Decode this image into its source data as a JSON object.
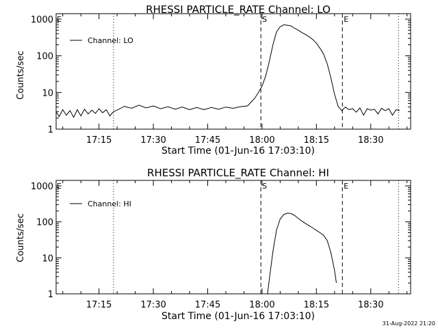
{
  "timestamp": "31-Aug-2022 21:20",
  "chart_data": [
    {
      "type": "line",
      "title": "RHESSI PARTICLE_RATE Channel: LO",
      "xlabel": "Start Time (01-Jun-16 17:03:10)",
      "ylabel": "Counts/sec",
      "y_scale": "log",
      "ylim": [
        1,
        1000
      ],
      "xlim_minutes": [
        "17:03:10",
        "18:41:00"
      ],
      "y_ticks": [
        "1",
        "10",
        "100",
        "1000"
      ],
      "x_ticks": [
        "17:15",
        "17:30",
        "17:45",
        "18:00",
        "18:15",
        "18:30"
      ],
      "legend": "Channel: LO",
      "markers": [
        {
          "label": "",
          "time": "17:19:00",
          "style": "dotted"
        },
        {
          "label": "S",
          "time": "17:59:40",
          "style": "dashed"
        },
        {
          "label": "E",
          "time": "18:22:10",
          "style": "dashed"
        },
        {
          "label": "",
          "time": "18:37:40",
          "style": "dotted"
        }
      ],
      "series": [
        {
          "name": "Channel: LO",
          "points": [
            [
              "17:03:10",
              3.0
            ],
            [
              "17:04:00",
              2.2
            ],
            [
              "17:05:00",
              3.4
            ],
            [
              "17:06:00",
              2.4
            ],
            [
              "17:07:00",
              3.2
            ],
            [
              "17:08:00",
              2.1
            ],
            [
              "17:09:00",
              3.4
            ],
            [
              "17:10:00",
              2.3
            ],
            [
              "17:11:00",
              3.5
            ],
            [
              "17:12:00",
              2.6
            ],
            [
              "17:13:00",
              3.3
            ],
            [
              "17:14:00",
              2.7
            ],
            [
              "17:15:00",
              3.6
            ],
            [
              "17:16:00",
              2.8
            ],
            [
              "17:17:00",
              3.4
            ],
            [
              "17:18:00",
              2.3
            ],
            [
              "17:19:00",
              3.0
            ],
            [
              "17:20:00",
              3.3
            ],
            [
              "17:22:00",
              4.2
            ],
            [
              "17:24:00",
              3.7
            ],
            [
              "17:26:00",
              4.5
            ],
            [
              "17:28:00",
              3.8
            ],
            [
              "17:30:00",
              4.3
            ],
            [
              "17:32:00",
              3.6
            ],
            [
              "17:34:00",
              4.1
            ],
            [
              "17:36:00",
              3.5
            ],
            [
              "17:38:00",
              4.0
            ],
            [
              "17:40:00",
              3.4
            ],
            [
              "17:42:00",
              3.9
            ],
            [
              "17:44:00",
              3.4
            ],
            [
              "17:46:00",
              3.9
            ],
            [
              "17:48:00",
              3.5
            ],
            [
              "17:50:00",
              4.0
            ],
            [
              "17:52:00",
              3.7
            ],
            [
              "17:54:00",
              4.1
            ],
            [
              "17:56:00",
              4.3
            ],
            [
              "17:58:00",
              7.0
            ],
            [
              "17:59:00",
              10
            ],
            [
              "18:00:00",
              15
            ],
            [
              "18:01:00",
              28
            ],
            [
              "18:02:00",
              70
            ],
            [
              "18:03:00",
              200
            ],
            [
              "18:04:00",
              450
            ],
            [
              "18:05:00",
              620
            ],
            [
              "18:06:00",
              700
            ],
            [
              "18:07:00",
              680
            ],
            [
              "18:08:00",
              650
            ],
            [
              "18:09:00",
              560
            ],
            [
              "18:10:00",
              500
            ],
            [
              "18:11:00",
              430
            ],
            [
              "18:12:00",
              380
            ],
            [
              "18:13:00",
              330
            ],
            [
              "18:14:00",
              280
            ],
            [
              "18:15:00",
              220
            ],
            [
              "18:16:00",
              160
            ],
            [
              "18:17:00",
              110
            ],
            [
              "18:18:00",
              60
            ],
            [
              "18:19:00",
              25
            ],
            [
              "18:20:00",
              9
            ],
            [
              "18:21:00",
              4.2
            ],
            [
              "18:22:00",
              3.2
            ],
            [
              "18:23:00",
              4.0
            ],
            [
              "18:24:00",
              3.4
            ],
            [
              "18:25:00",
              3.6
            ],
            [
              "18:26:00",
              2.9
            ],
            [
              "18:27:00",
              3.8
            ],
            [
              "18:28:00",
              2.4
            ],
            [
              "18:29:00",
              3.6
            ],
            [
              "18:30:00",
              3.3
            ],
            [
              "18:31:00",
              3.5
            ],
            [
              "18:32:00",
              2.6
            ],
            [
              "18:33:00",
              3.7
            ],
            [
              "18:34:00",
              3.2
            ],
            [
              "18:35:00",
              3.6
            ],
            [
              "18:36:00",
              2.4
            ],
            [
              "18:37:00",
              3.4
            ],
            [
              "18:38:00",
              3.2
            ]
          ]
        }
      ]
    },
    {
      "type": "line",
      "title": "RHESSI PARTICLE_RATE Channel: HI",
      "xlabel": "Start Time (01-Jun-16 17:03:10)",
      "ylabel": "Counts/sec",
      "y_scale": "log",
      "ylim": [
        1,
        1000
      ],
      "xlim_minutes": [
        "17:03:10",
        "18:41:00"
      ],
      "y_ticks": [
        "1",
        "10",
        "100",
        "1000"
      ],
      "x_ticks": [
        "17:15",
        "17:30",
        "17:45",
        "18:00",
        "18:15",
        "18:30"
      ],
      "legend": "Channel: HI",
      "markers": [
        {
          "label": "",
          "time": "17:19:00",
          "style": "dotted"
        },
        {
          "label": "S",
          "time": "17:59:40",
          "style": "dashed"
        },
        {
          "label": "E",
          "time": "18:22:10",
          "style": "dashed"
        },
        {
          "label": "",
          "time": "18:37:40",
          "style": "dotted"
        }
      ],
      "series": [
        {
          "name": "Channel: HI",
          "points": [
            [
              "18:01:30",
              1.0
            ],
            [
              "18:02:00",
              2.5
            ],
            [
              "18:03:00",
              15
            ],
            [
              "18:04:00",
              60
            ],
            [
              "18:05:00",
              120
            ],
            [
              "18:06:00",
              160
            ],
            [
              "18:07:00",
              175
            ],
            [
              "18:08:00",
              170
            ],
            [
              "18:09:00",
              150
            ],
            [
              "18:10:00",
              125
            ],
            [
              "18:11:00",
              105
            ],
            [
              "18:12:00",
              90
            ],
            [
              "18:13:00",
              78
            ],
            [
              "18:14:00",
              68
            ],
            [
              "18:15:00",
              58
            ],
            [
              "18:16:00",
              50
            ],
            [
              "18:17:00",
              42
            ],
            [
              "18:18:00",
              30
            ],
            [
              "18:19:00",
              14
            ],
            [
              "18:20:00",
              4.5
            ],
            [
              "18:20:30",
              2.0
            ]
          ]
        }
      ]
    }
  ]
}
